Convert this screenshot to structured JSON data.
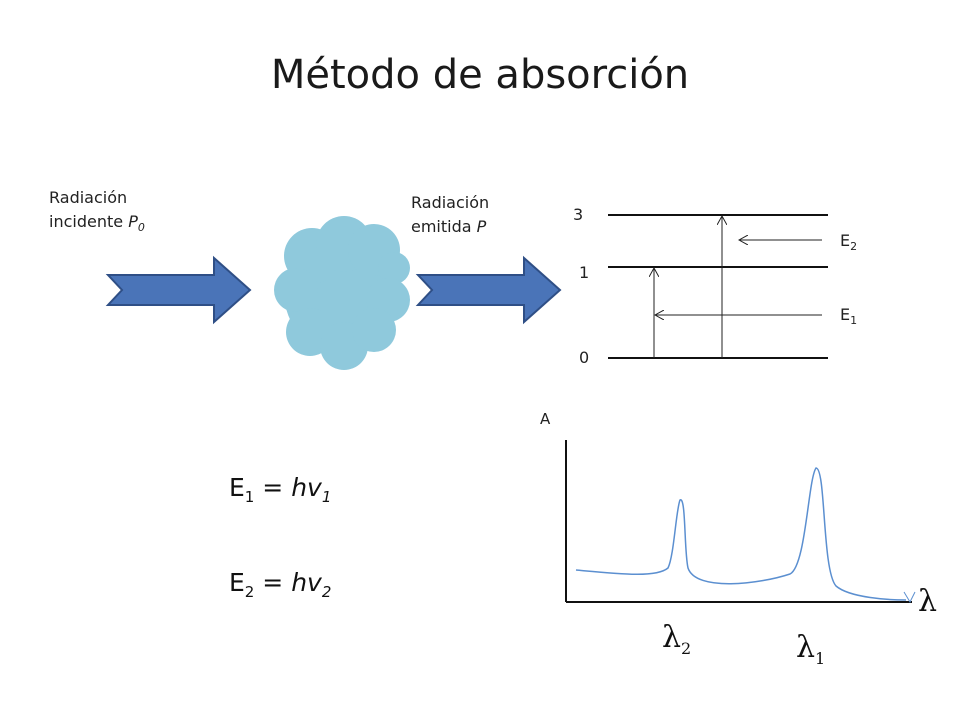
{
  "title": "Método de absorción",
  "incident_label": {
    "line1": "Radiación",
    "line2": "incidente",
    "symbol": "P",
    "subscript": "0"
  },
  "emitted_label": {
    "line1": "Radiación",
    "line2": "emitida",
    "symbol": "P"
  },
  "energy_levels": {
    "levels": [
      "3",
      "1",
      "0"
    ],
    "transitions": [
      {
        "label": "E",
        "subscript": "2"
      },
      {
        "label": "E",
        "subscript": "1"
      }
    ]
  },
  "equations": [
    {
      "lhs": "E",
      "lhs_sub": "1",
      "op": "=",
      "rhs": "hv",
      "rhs_sub": "1"
    },
    {
      "lhs": "E",
      "lhs_sub": "2",
      "op": "=",
      "rhs": "hv",
      "rhs_sub": "2"
    }
  ],
  "spectrum": {
    "y_axis_label": "A",
    "x_axis_symbol": "λ",
    "peaks": [
      {
        "symbol": "λ",
        "subscript": "2"
      },
      {
        "symbol": "λ",
        "subscript": "1"
      }
    ]
  },
  "colors": {
    "arrow_fill": "#4a74b8",
    "arrow_stroke": "#2f4f86",
    "cloud": "#8fc9dc",
    "curve": "#5b8fd0"
  }
}
